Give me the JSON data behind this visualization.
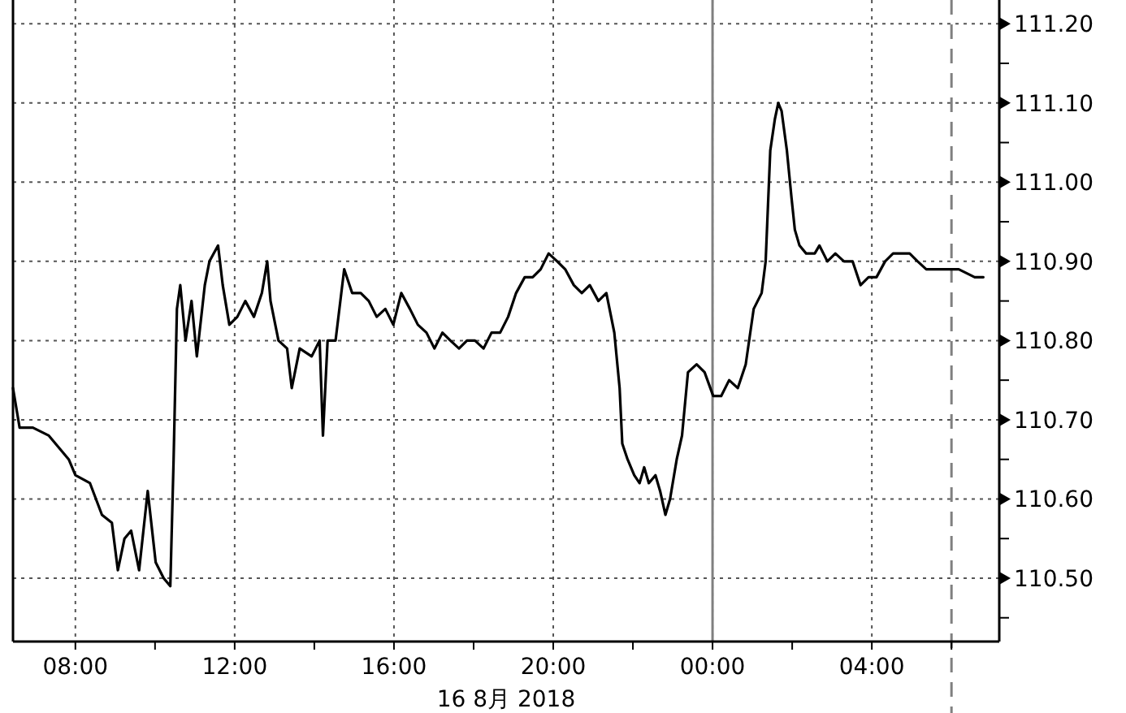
{
  "chart_data": {
    "type": "line",
    "xlabel": "16 8月 2018",
    "xlim": [
      "2018-08-16T06:26",
      "2018-08-17T07:12"
    ],
    "ylim": [
      110.42,
      111.23
    ],
    "xticks": [
      {
        "value": "2018-08-16T08:00",
        "label": "08:00"
      },
      {
        "value": "2018-08-16T10:00",
        "label": null
      },
      {
        "value": "2018-08-16T12:00",
        "label": "12:00"
      },
      {
        "value": "2018-08-16T14:00",
        "label": null
      },
      {
        "value": "2018-08-16T16:00",
        "label": "16:00"
      },
      {
        "value": "2018-08-16T18:00",
        "label": null
      },
      {
        "value": "2018-08-16T20:00",
        "label": "20:00"
      },
      {
        "value": "2018-08-16T22:00",
        "label": null
      },
      {
        "value": "2018-08-17T00:00",
        "label": "00:00"
      },
      {
        "value": "2018-08-17T02:00",
        "label": null
      },
      {
        "value": "2018-08-17T04:00",
        "label": "04:00"
      },
      {
        "value": "2018-08-17T06:00",
        "label": null
      }
    ],
    "yticks": [
      {
        "value": 110.45,
        "label": null
      },
      {
        "value": 110.5,
        "label": "110.50"
      },
      {
        "value": 110.55,
        "label": null
      },
      {
        "value": 110.6,
        "label": "110.60"
      },
      {
        "value": 110.65,
        "label": null
      },
      {
        "value": 110.7,
        "label": "110.70"
      },
      {
        "value": 110.75,
        "label": null
      },
      {
        "value": 110.8,
        "label": "110.80"
      },
      {
        "value": 110.85,
        "label": null
      },
      {
        "value": 110.9,
        "label": "110.90"
      },
      {
        "value": 110.95,
        "label": null
      },
      {
        "value": 111.0,
        "label": "111.00"
      },
      {
        "value": 111.05,
        "label": null
      },
      {
        "value": 111.1,
        "label": "111.10"
      },
      {
        "value": 111.15,
        "label": null
      },
      {
        "value": 111.2,
        "label": "111.20"
      }
    ],
    "grid": true,
    "legend": false,
    "marker": "none",
    "line_style": "solid",
    "ref_lines": [
      {
        "axis": "x",
        "value": "2018-08-17T00:00",
        "color": "#808080",
        "line_style": "solid"
      },
      {
        "axis": "x",
        "value": "2018-08-17T06:00",
        "color": "#808080",
        "line_style": "dashed"
      }
    ],
    "series": [
      {
        "color": "#000000",
        "x": [
          "2018-08-16T06:26",
          "2018-08-16T06:36",
          "2018-08-16T06:56",
          "2018-08-16T07:20",
          "2018-08-16T07:50",
          "2018-08-16T08:00",
          "2018-08-16T08:22",
          "2018-08-16T08:40",
          "2018-08-16T08:55",
          "2018-08-16T09:04",
          "2018-08-16T09:14",
          "2018-08-16T09:24",
          "2018-08-16T09:36",
          "2018-08-16T09:49",
          "2018-08-16T10:01",
          "2018-08-16T10:13",
          "2018-08-16T10:23",
          "2018-08-16T10:28",
          "2018-08-16T10:33",
          "2018-08-16T10:38",
          "2018-08-16T10:46",
          "2018-08-16T10:55",
          "2018-08-16T11:03",
          "2018-08-16T11:15",
          "2018-08-16T11:22",
          "2018-08-16T11:35",
          "2018-08-16T11:42",
          "2018-08-16T11:52",
          "2018-08-16T12:04",
          "2018-08-16T12:16",
          "2018-08-16T12:29",
          "2018-08-16T12:41",
          "2018-08-16T12:49",
          "2018-08-16T12:54",
          "2018-08-16T13:06",
          "2018-08-16T13:19",
          "2018-08-16T13:26",
          "2018-08-16T13:38",
          "2018-08-16T13:56",
          "2018-08-16T14:08",
          "2018-08-16T14:13",
          "2018-08-16T14:20",
          "2018-08-16T14:32",
          "2018-08-16T14:45",
          "2018-08-16T14:57",
          "2018-08-16T15:10",
          "2018-08-16T15:22",
          "2018-08-16T15:34",
          "2018-08-16T15:47",
          "2018-08-16T15:59",
          "2018-08-16T16:11",
          "2018-08-16T16:24",
          "2018-08-16T16:36",
          "2018-08-16T16:49",
          "2018-08-16T17:01",
          "2018-08-16T17:13",
          "2018-08-16T17:25",
          "2018-08-16T17:38",
          "2018-08-16T17:50",
          "2018-08-16T18:02",
          "2018-08-16T18:15",
          "2018-08-16T18:27",
          "2018-08-16T18:40",
          "2018-08-16T18:52",
          "2018-08-16T19:04",
          "2018-08-16T19:17",
          "2018-08-16T19:29",
          "2018-08-16T19:41",
          "2018-08-16T19:53",
          "2018-08-16T20:06",
          "2018-08-16T20:18",
          "2018-08-16T20:31",
          "2018-08-16T20:43",
          "2018-08-16T20:55",
          "2018-08-16T21:08",
          "2018-08-16T21:20",
          "2018-08-16T21:32",
          "2018-08-16T21:40",
          "2018-08-16T21:44",
          "2018-08-16T21:52",
          "2018-08-16T22:02",
          "2018-08-16T22:10",
          "2018-08-16T22:17",
          "2018-08-16T22:24",
          "2018-08-16T22:34",
          "2018-08-16T22:41",
          "2018-08-16T22:49",
          "2018-08-16T22:56",
          "2018-08-16T23:06",
          "2018-08-16T23:14",
          "2018-08-16T23:23",
          "2018-08-16T23:36",
          "2018-08-16T23:48",
          "2018-08-17T00:01",
          "2018-08-17T00:13",
          "2018-08-17T00:25",
          "2018-08-17T00:38",
          "2018-08-17T00:50",
          "2018-08-17T01:02",
          "2018-08-17T01:14",
          "2018-08-17T01:20",
          "2018-08-17T01:27",
          "2018-08-17T01:34",
          "2018-08-17T01:39",
          "2018-08-17T01:44",
          "2018-08-17T01:52",
          "2018-08-17T01:59",
          "2018-08-17T02:04",
          "2018-08-17T02:11",
          "2018-08-17T02:21",
          "2018-08-17T02:34",
          "2018-08-17T02:41",
          "2018-08-17T02:53",
          "2018-08-17T03:05",
          "2018-08-17T03:18",
          "2018-08-17T03:31",
          "2018-08-17T03:43",
          "2018-08-17T03:55",
          "2018-08-17T04:07",
          "2018-08-17T04:20",
          "2018-08-17T04:32",
          "2018-08-17T04:44",
          "2018-08-17T04:57",
          "2018-08-17T05:09",
          "2018-08-17T05:22",
          "2018-08-17T05:34",
          "2018-08-17T05:46",
          "2018-08-17T05:59",
          "2018-08-17T06:11",
          "2018-08-17T06:35",
          "2018-08-17T06:48"
        ],
        "values": [
          110.74,
          110.69,
          110.69,
          110.68,
          110.65,
          110.63,
          110.62,
          110.58,
          110.57,
          110.51,
          110.55,
          110.56,
          110.51,
          110.61,
          110.52,
          110.5,
          110.49,
          110.65,
          110.84,
          110.87,
          110.8,
          110.85,
          110.78,
          110.87,
          110.9,
          110.92,
          110.87,
          110.82,
          110.83,
          110.85,
          110.83,
          110.86,
          110.9,
          110.85,
          110.8,
          110.79,
          110.74,
          110.79,
          110.78,
          110.8,
          110.68,
          110.8,
          110.8,
          110.89,
          110.86,
          110.86,
          110.85,
          110.83,
          110.84,
          110.82,
          110.86,
          110.84,
          110.82,
          110.81,
          110.79,
          110.81,
          110.8,
          110.79,
          110.8,
          110.8,
          110.79,
          110.81,
          110.81,
          110.83,
          110.86,
          110.88,
          110.88,
          110.89,
          110.91,
          110.9,
          110.89,
          110.87,
          110.86,
          110.87,
          110.85,
          110.86,
          110.81,
          110.74,
          110.67,
          110.65,
          110.63,
          110.62,
          110.64,
          110.62,
          110.63,
          110.61,
          110.58,
          110.6,
          110.65,
          110.68,
          110.76,
          110.77,
          110.76,
          110.73,
          110.73,
          110.75,
          110.74,
          110.77,
          110.84,
          110.86,
          110.9,
          111.04,
          111.08,
          111.1,
          111.09,
          111.04,
          110.98,
          110.94,
          110.92,
          110.91,
          110.91,
          110.92,
          110.9,
          110.91,
          110.9,
          110.9,
          110.87,
          110.88,
          110.88,
          110.9,
          110.91,
          110.91,
          110.91,
          110.9,
          110.89,
          110.89,
          110.89,
          110.89,
          110.89,
          110.88,
          110.88
        ]
      }
    ]
  }
}
